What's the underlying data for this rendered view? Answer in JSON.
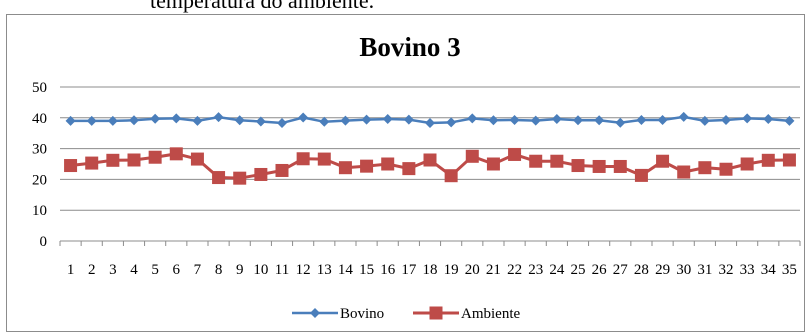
{
  "page": {
    "caption_fragment": "temperatura do ambiente."
  },
  "chart_data": {
    "type": "line",
    "title": "Bovino 3",
    "xlabel": "",
    "ylabel": "",
    "categories": [
      "1",
      "2",
      "3",
      "4",
      "5",
      "6",
      "7",
      "8",
      "9",
      "10",
      "11",
      "12",
      "13",
      "14",
      "15",
      "16",
      "17",
      "18",
      "19",
      "20",
      "21",
      "22",
      "23",
      "24",
      "25",
      "26",
      "27",
      "28",
      "29",
      "30",
      "31",
      "32",
      "33",
      "34",
      "35"
    ],
    "ylim": [
      0,
      50
    ],
    "yticks": [
      0,
      10,
      20,
      30,
      40,
      50
    ],
    "grid": true,
    "legend_position": "bottom",
    "series": [
      {
        "name": "Bovino",
        "color": "#4a7ebb",
        "marker": "diamond",
        "values": [
          39.0,
          39.0,
          39.0,
          39.2,
          39.7,
          39.8,
          39.0,
          40.2,
          39.2,
          38.8,
          38.3,
          40.1,
          38.7,
          39.1,
          39.4,
          39.6,
          39.4,
          38.3,
          38.5,
          39.8,
          39.2,
          39.3,
          39.1,
          39.6,
          39.2,
          39.2,
          38.4,
          39.3,
          39.3,
          40.3,
          39.0,
          39.3,
          39.8,
          39.6,
          39.0
        ]
      },
      {
        "name": "Ambiente",
        "color": "#be4b48",
        "marker": "square",
        "values": [
          24.5,
          25.3,
          26.2,
          26.3,
          27.2,
          28.3,
          26.6,
          20.6,
          20.4,
          21.6,
          22.9,
          26.7,
          26.6,
          23.8,
          24.3,
          25.0,
          23.5,
          26.3,
          21.2,
          27.5,
          25.0,
          28.1,
          25.9,
          25.9,
          24.5,
          24.2,
          24.2,
          21.3,
          25.9,
          22.4,
          23.8,
          23.3,
          25.0,
          26.2,
          26.3
        ]
      }
    ]
  }
}
